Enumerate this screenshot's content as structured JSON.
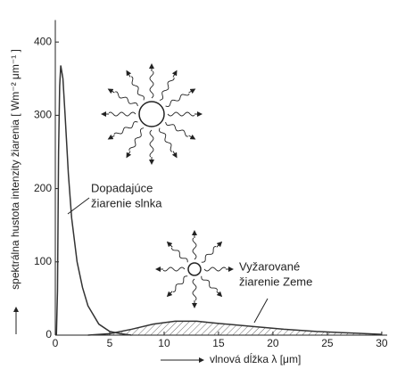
{
  "chart_data": {
    "type": "line",
    "xlabel": "vlnová dĺžka λ [μm]",
    "ylabel": "spektrálna hustota intenzity žiarenia [ Wm⁻² μm⁻¹ ]",
    "xlim": [
      0,
      30.5
    ],
    "ylim": [
      0,
      430
    ],
    "xticks": [
      0,
      5,
      10,
      15,
      20,
      25,
      30
    ],
    "yticks": [
      0,
      100,
      200,
      300,
      400
    ],
    "series": [
      {
        "color": "#333333",
        "x": [
          0.1,
          0.2,
          0.3,
          0.4,
          0.5,
          0.7,
          0.9,
          1.2,
          1.5,
          2,
          2.5,
          3,
          4,
          5,
          6,
          7
        ],
        "values": [
          0,
          60,
          250,
          340,
          368,
          350,
          300,
          220,
          160,
          100,
          65,
          40,
          15,
          5,
          2,
          0
        ]
      },
      {
        "color": "#333333",
        "fill": "hatch",
        "x": [
          3,
          5,
          7,
          9,
          11,
          13,
          15,
          18,
          21,
          24,
          27,
          30
        ],
        "values": [
          0,
          2,
          8,
          15,
          19,
          19,
          16,
          12,
          8,
          5,
          3,
          1
        ]
      }
    ],
    "annotations": [
      {
        "lines": [
          "Dopadajúce",
          "žiarenie slnka"
        ]
      },
      {
        "lines": [
          "Vyžarované",
          "žiarenie Zeme"
        ]
      }
    ]
  }
}
